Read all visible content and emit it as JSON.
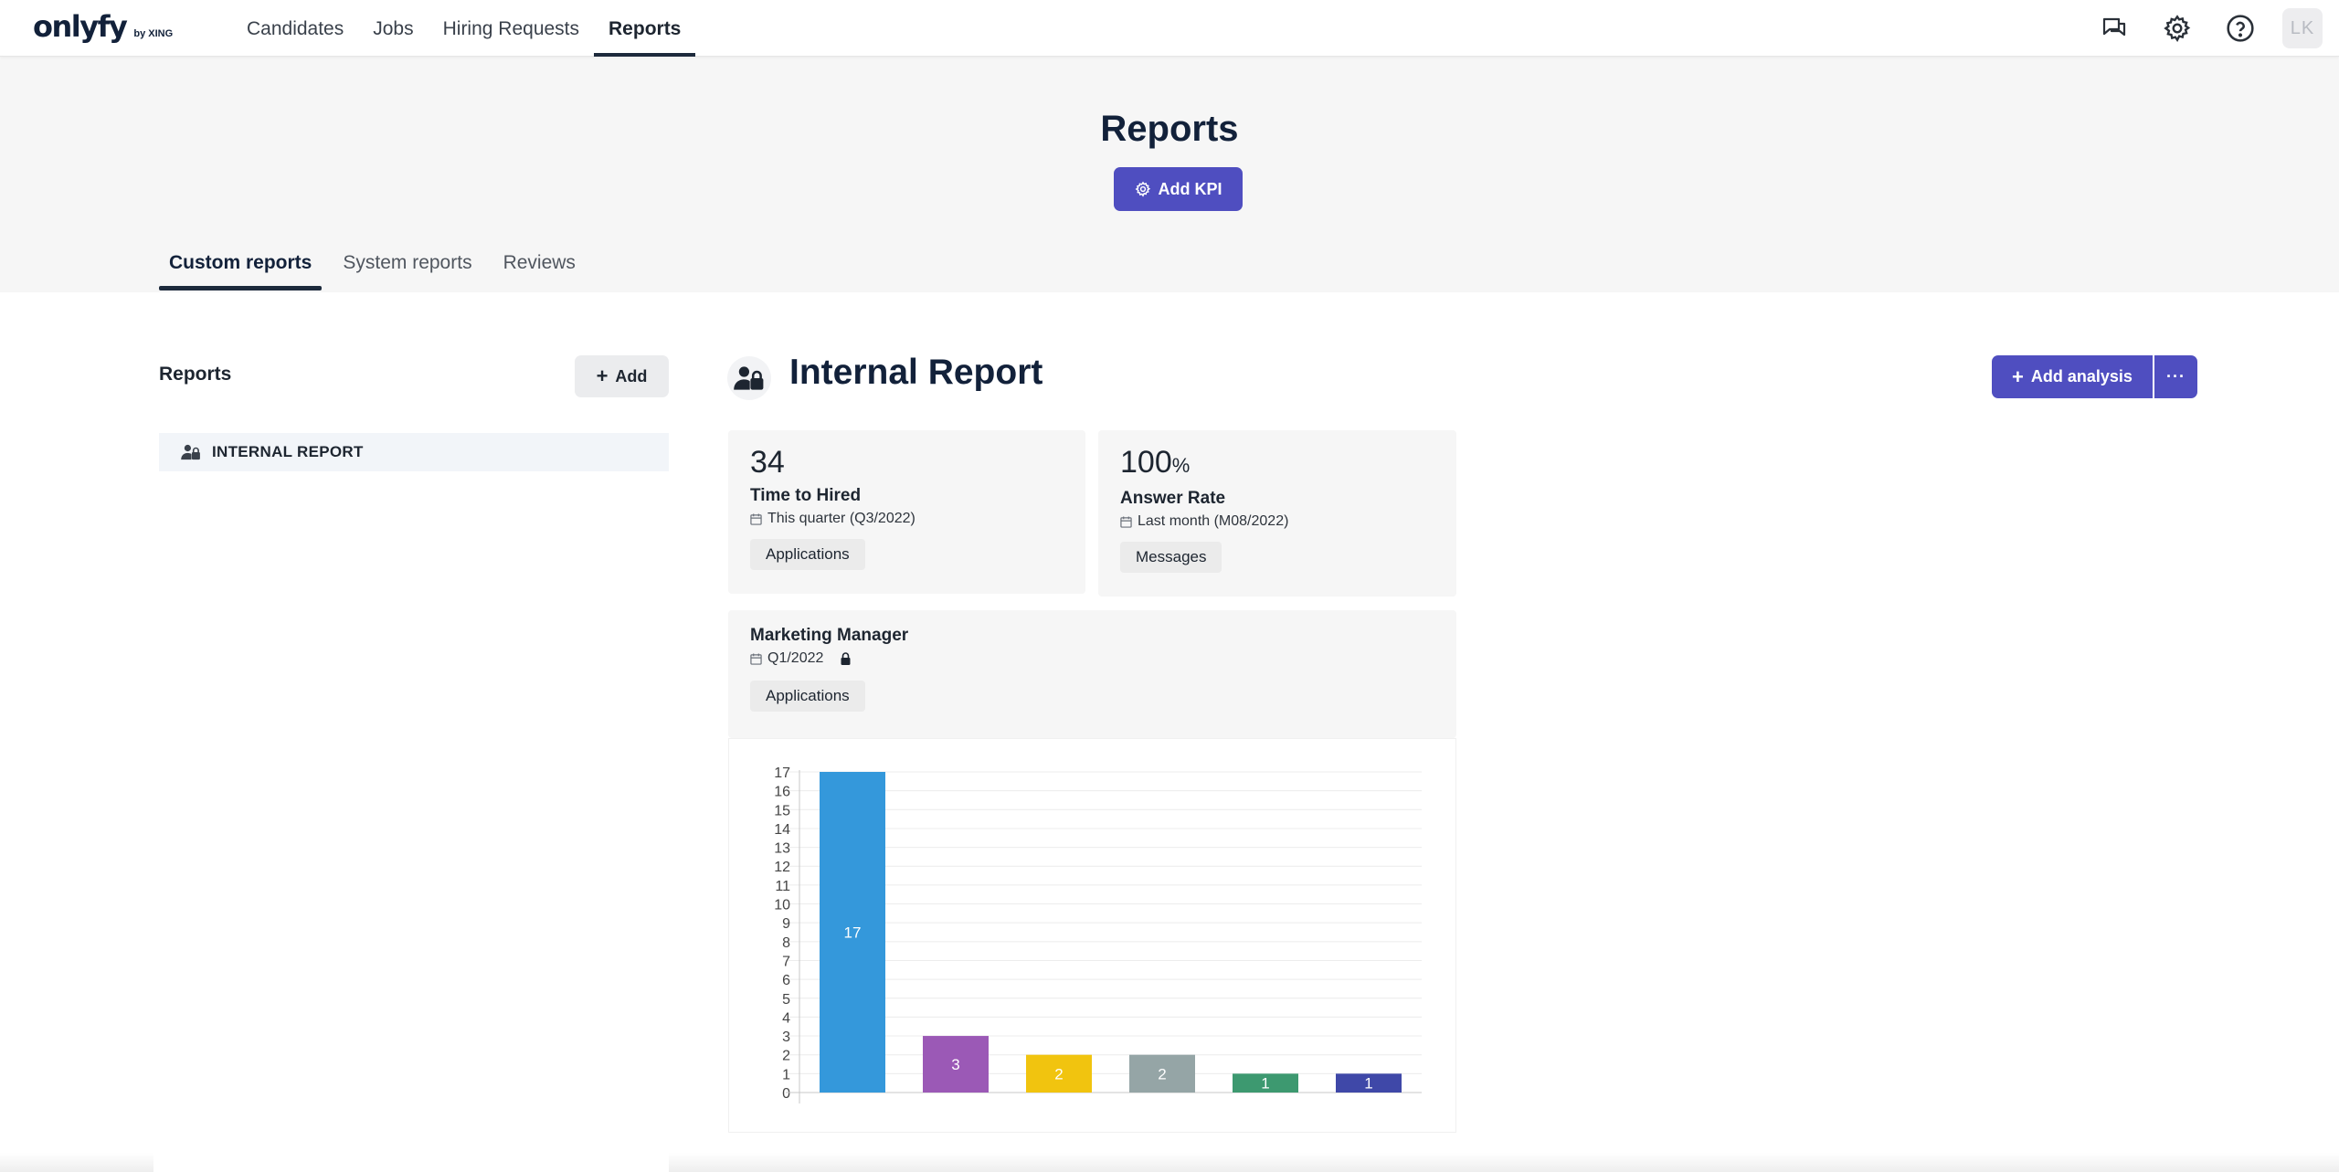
{
  "app": {
    "logo": "onlyfy",
    "logo_sub": "by XING",
    "avatar_initials": "LK"
  },
  "nav": {
    "items": [
      "Candidates",
      "Jobs",
      "Hiring Requests",
      "Reports"
    ],
    "active": "Reports"
  },
  "top_icons": [
    "chat-icon",
    "gear-icon",
    "help-icon"
  ],
  "page": {
    "title": "Reports",
    "add_kpi_label": "Add KPI"
  },
  "tabs": [
    "Custom reports",
    "System reports",
    "Reviews"
  ],
  "sidebar": {
    "title": "Reports",
    "add_label": "Add",
    "items": [
      {
        "label": "INTERNAL REPORT",
        "icon": "user-lock-icon"
      }
    ]
  },
  "report": {
    "title": "Internal Report",
    "add_analysis_label": "Add analysis",
    "more_label": "···"
  },
  "kpis": [
    {
      "value": "34",
      "unit": "",
      "name": "Time to Hired",
      "period": "This quarter (Q3/2022)",
      "chip": "Applications"
    },
    {
      "value": "100",
      "unit": "%",
      "name": "Answer Rate",
      "period": "Last month (M08/2022)",
      "chip": "Messages"
    }
  ],
  "analysis": {
    "name": "Marketing Manager",
    "period": "Q1/2022",
    "chip": "Applications"
  },
  "colors": {
    "accent": "#4f4ec0",
    "nav_dark": "#1d2a3c",
    "header_bg": "#f6f6f6"
  },
  "chart_data": {
    "type": "bar",
    "categories": [
      "",
      "",
      "",
      "",
      "",
      ""
    ],
    "values": [
      17,
      3,
      2,
      2,
      1,
      1
    ],
    "colors": [
      "#3498db",
      "#9b59b6",
      "#f1c40f",
      "#95a5a6",
      "#3d9970",
      "#3f48a8"
    ],
    "ylim": [
      0,
      17
    ],
    "yticks": [
      0,
      1,
      2,
      3,
      4,
      5,
      6,
      7,
      8,
      9,
      10,
      11,
      12,
      13,
      14,
      15,
      16,
      17
    ],
    "data_labels": true,
    "grid": true,
    "legend": "none"
  }
}
